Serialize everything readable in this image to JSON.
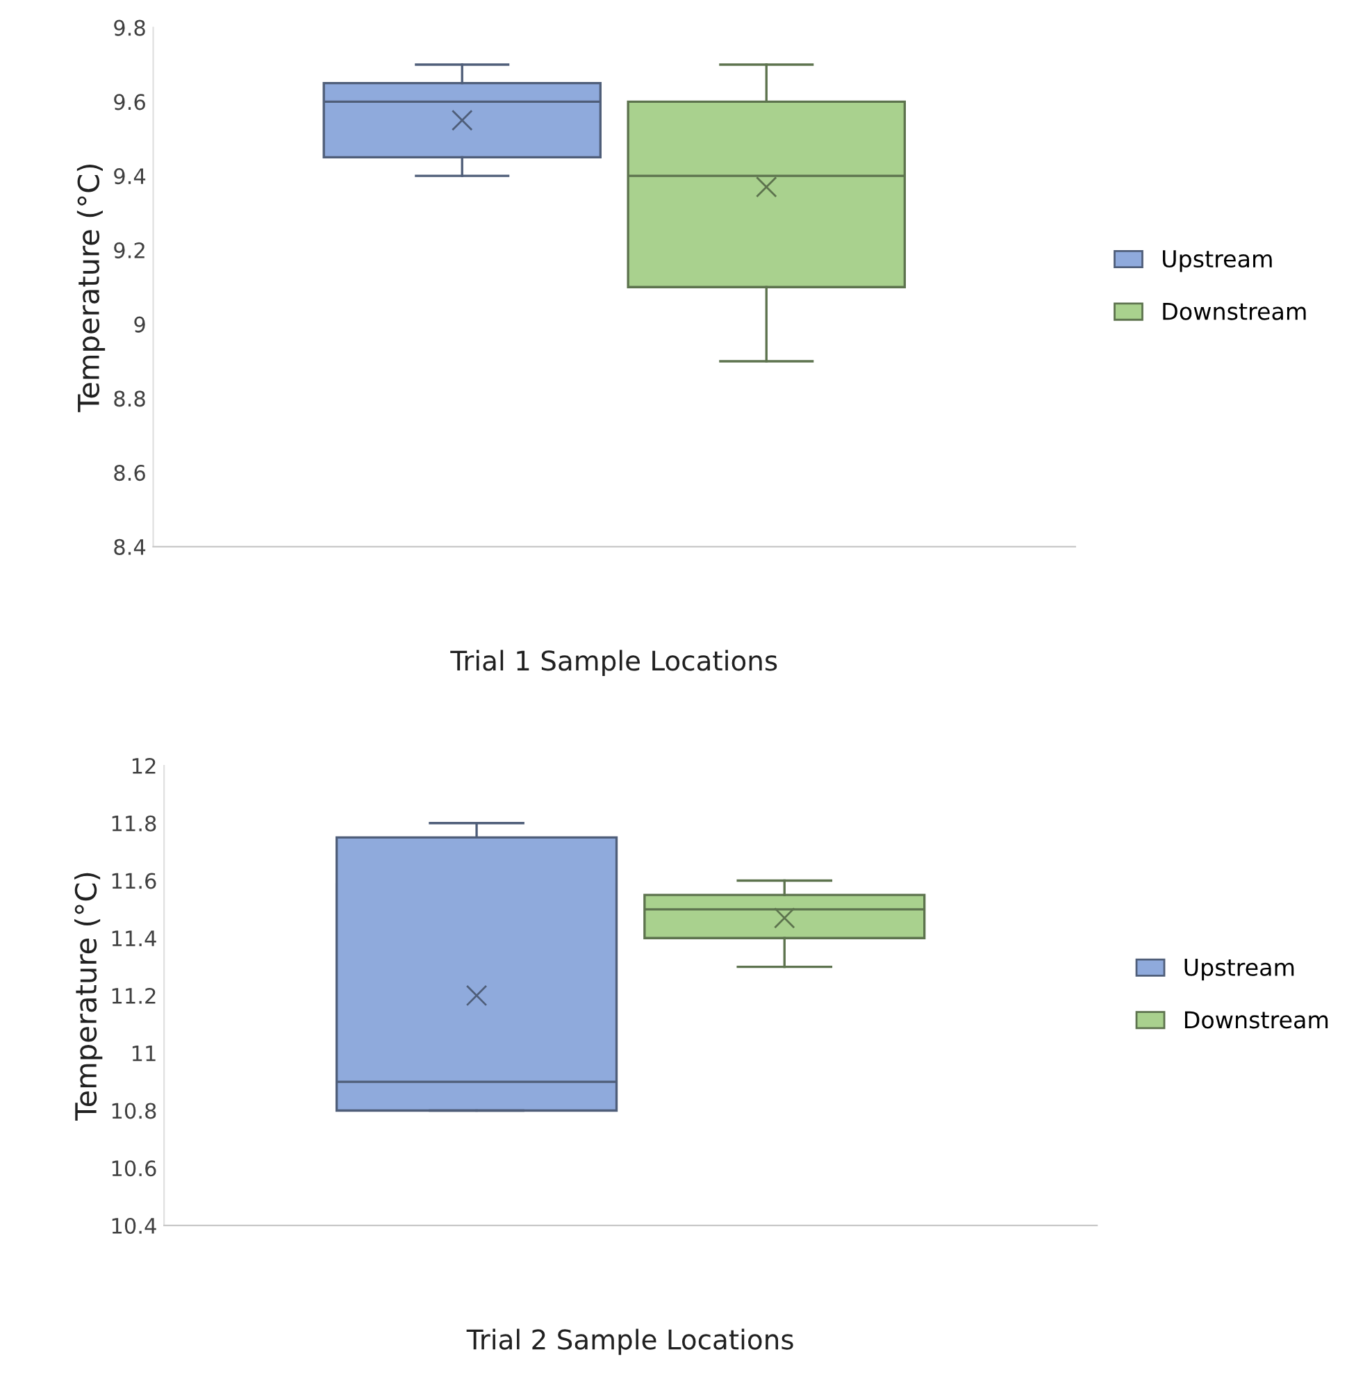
{
  "chart_data": [
    {
      "type": "box",
      "xlabel": "Trial 1 Sample Locations",
      "ylabel": "Temperature (°C)",
      "categories": [
        null
      ],
      "ylim": [
        8.4,
        9.8
      ],
      "yticks": [
        8.4,
        8.6,
        8.8,
        9,
        9.2,
        9.4,
        9.6,
        9.8
      ],
      "grid": false,
      "legend": "right",
      "marker": "cross",
      "series": [
        {
          "name": "Upstream",
          "color": "#8faadc",
          "boxes": [
            {
              "low": 9.4,
              "q1": 9.45,
              "median": 9.6,
              "q3": 9.65,
              "high": 9.7,
              "mean": 9.55
            }
          ]
        },
        {
          "name": "Downstream",
          "color": "#a9d18e",
          "boxes": [
            {
              "low": 8.9,
              "q1": 9.1,
              "median": 9.4,
              "q3": 9.6,
              "high": 9.7,
              "mean": 9.37
            }
          ]
        }
      ]
    },
    {
      "type": "box",
      "xlabel": "Trial 2 Sample Locations",
      "ylabel": "Temperature (°C)",
      "categories": [
        null
      ],
      "ylim": [
        10.4,
        12
      ],
      "yticks": [
        10.4,
        10.6,
        10.8,
        11,
        11.2,
        11.4,
        11.6,
        11.8,
        12
      ],
      "grid": false,
      "legend": "right",
      "marker": "cross",
      "series": [
        {
          "name": "Upstream",
          "color": "#8faadc",
          "boxes": [
            {
              "low": 10.8,
              "q1": 10.8,
              "median": 10.9,
              "q3": 11.75,
              "high": 11.8,
              "mean": 11.2
            }
          ]
        },
        {
          "name": "Downstream",
          "color": "#a9d18e",
          "boxes": [
            {
              "low": 11.3,
              "q1": 11.4,
              "median": 11.5,
              "q3": 11.55,
              "high": 11.6,
              "mean": 11.47
            }
          ]
        }
      ]
    }
  ]
}
